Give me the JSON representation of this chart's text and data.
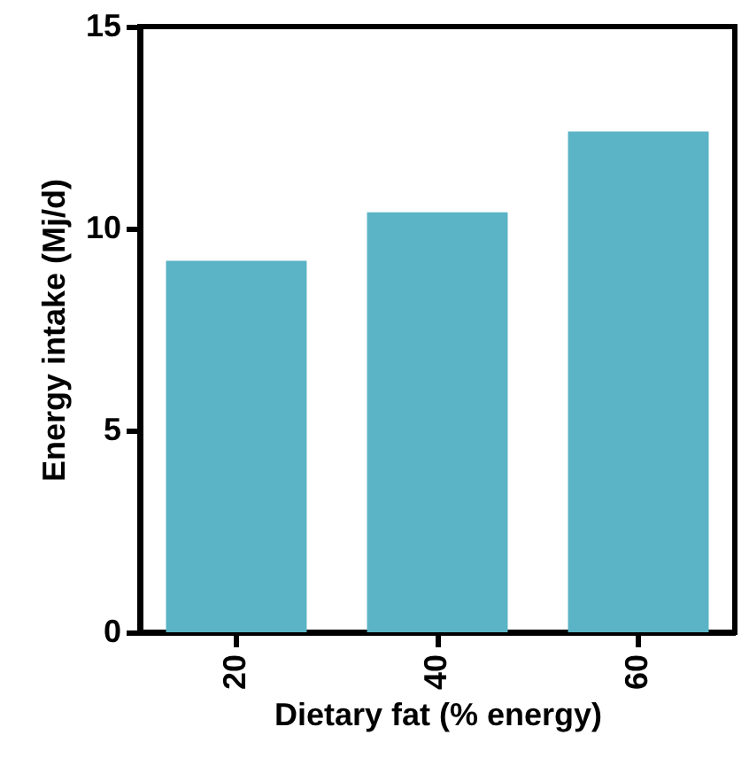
{
  "chart_data": {
    "type": "bar",
    "xlabel": "Dietary fat  (% energy)",
    "ylabel": "Energy intake (Mj/d)",
    "categories": [
      "20",
      "40",
      "60"
    ],
    "values": [
      9.2,
      10.4,
      12.4
    ],
    "color": "#5ab4c5",
    "ylim": [
      0,
      15
    ],
    "yticks": [
      0,
      5,
      10,
      15
    ],
    "grid": false
  }
}
